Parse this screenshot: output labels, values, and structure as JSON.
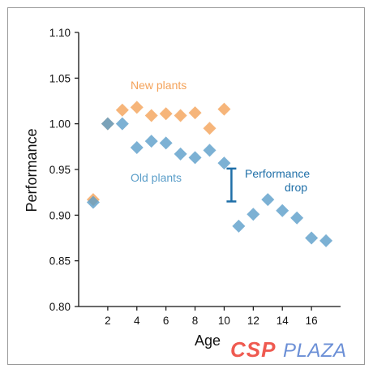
{
  "chart_data": {
    "type": "scatter",
    "xlabel": "Age",
    "ylabel": "Performance",
    "xlim": [
      0,
      18
    ],
    "ylim": [
      0.8,
      1.1
    ],
    "x_ticks": [
      "2",
      "4",
      "6",
      "8",
      "10",
      "12",
      "14",
      "16"
    ],
    "y_ticks": [
      "0.80",
      "0.85",
      "0.90",
      "0.95",
      "1.00",
      "1.05",
      "1.10"
    ],
    "grid": false,
    "series": [
      {
        "label": "New plants",
        "color": "#f4a259",
        "points": [
          {
            "x": 1,
            "y": 0.917
          },
          {
            "x": 2,
            "y": 1.0
          },
          {
            "x": 3,
            "y": 1.015
          },
          {
            "x": 4,
            "y": 1.018
          },
          {
            "x": 5,
            "y": 1.009
          },
          {
            "x": 6,
            "y": 1.011
          },
          {
            "x": 7,
            "y": 1.009
          },
          {
            "x": 8,
            "y": 1.012
          },
          {
            "x": 9,
            "y": 0.995
          },
          {
            "x": 10,
            "y": 1.016
          }
        ]
      },
      {
        "label": "Old plants",
        "color": "#5b9ec9",
        "points": [
          {
            "x": 1,
            "y": 0.914
          },
          {
            "x": 2,
            "y": 1.0
          },
          {
            "x": 3,
            "y": 1.0
          },
          {
            "x": 4,
            "y": 0.974
          },
          {
            "x": 5,
            "y": 0.981
          },
          {
            "x": 6,
            "y": 0.979
          },
          {
            "x": 7,
            "y": 0.967
          },
          {
            "x": 8,
            "y": 0.963
          },
          {
            "x": 9,
            "y": 0.971
          },
          {
            "x": 10,
            "y": 0.957
          },
          {
            "x": 11,
            "y": 0.888
          },
          {
            "x": 12,
            "y": 0.901
          },
          {
            "x": 13,
            "y": 0.917
          },
          {
            "x": 14,
            "y": 0.905
          },
          {
            "x": 15,
            "y": 0.897
          },
          {
            "x": 16,
            "y": 0.875
          },
          {
            "x": 17,
            "y": 0.872
          }
        ]
      }
    ],
    "annotations": {
      "new_label": "New plants",
      "old_label": "Old plants",
      "drop_label_line1": "Performance",
      "drop_label_line2": "drop",
      "drop_bar": {
        "x": 10.5,
        "y_top": 0.951,
        "y_bottom": 0.915
      },
      "drop_color": "#1f6fa8",
      "new_color": "#f4a259",
      "old_color": "#5b9ec9"
    }
  },
  "watermark": {
    "part1": "CSP",
    "part2": "PLAZA"
  }
}
